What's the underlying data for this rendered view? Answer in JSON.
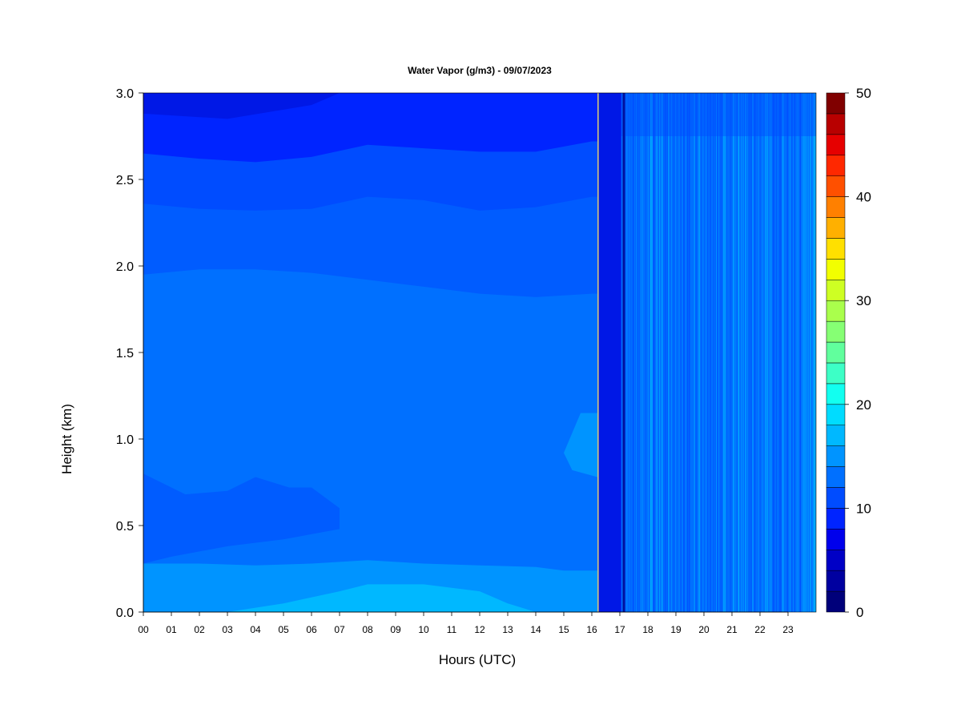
{
  "chart_data": {
    "type": "heatmap",
    "title": "Water Vapor (g/m3) - 09/07/2023",
    "xlabel": "Hours (UTC)",
    "ylabel": "Height (km)",
    "x_ticks": [
      "00",
      "01",
      "02",
      "03",
      "04",
      "05",
      "06",
      "07",
      "08",
      "09",
      "10",
      "11",
      "12",
      "13",
      "14",
      "15",
      "16",
      "17",
      "18",
      "19",
      "20",
      "21",
      "22",
      "23"
    ],
    "xlim": [
      0,
      24
    ],
    "y_ticks": [
      "0.0",
      "0.5",
      "1.0",
      "1.5",
      "2.0",
      "2.5",
      "3.0"
    ],
    "ylim": [
      0,
      3.0
    ],
    "colorbar": {
      "ticks": [
        "0",
        "10",
        "20",
        "30",
        "40",
        "50"
      ],
      "range": [
        0,
        50
      ],
      "step": 2,
      "colors": [
        "#00007a",
        "#0000a0",
        "#0000c6",
        "#0000ec",
        "#0024ff",
        "#004cff",
        "#0070ff",
        "#0094ff",
        "#00b8ff",
        "#00dcff",
        "#12fff0",
        "#3dffc6",
        "#61ff9d",
        "#86ff74",
        "#aaff4c",
        "#ceff23",
        "#f2ff00",
        "#ffe000",
        "#ffb000",
        "#ff8000",
        "#ff5000",
        "#ff2800",
        "#e60000",
        "#b80000",
        "#800000"
      ]
    },
    "field_description_values_gpm3": {
      "bottom_layer_0_to_0.25km_hours_7_to_12": 18,
      "near_surface_0_to_0.3km": 16,
      "lower_layer_0.3_to_1.9km": 14,
      "mid_layer_1.9_to_2.3km": 12,
      "upper_layer_2.3_to_2.7km": 10,
      "top_layer_2.7_to_3.0km": 8,
      "top_minimum_hours_0_to_7": 6
    },
    "colors": {
      "c6": "#0024ff",
      "c8": "#0024ff",
      "c10": "#004cff",
      "c12": "#005cff",
      "c14": "#0070ff",
      "c16": "#0094ff",
      "c18": "#00b8ff",
      "c20": "#00dcff"
    }
  }
}
